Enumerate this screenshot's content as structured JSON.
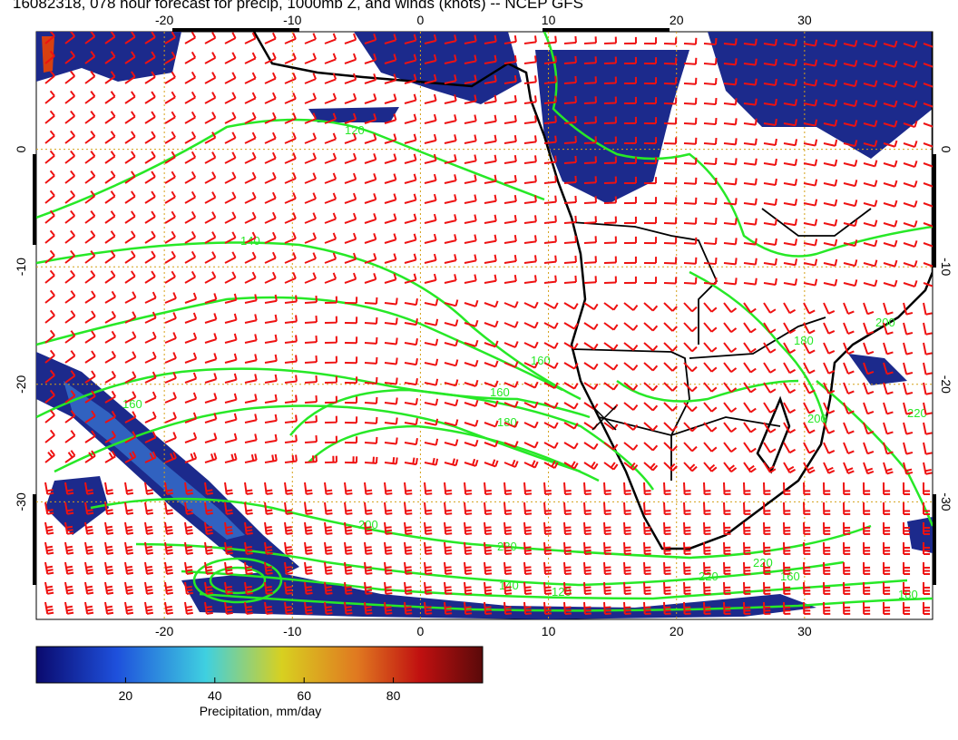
{
  "title": "16082318, 078 hour forecast for precip, 1000mb Z, and winds (knots) -- NCEP GFS",
  "map": {
    "lon_ticks": [
      "-20",
      "-10",
      "0",
      "10",
      "20",
      "30"
    ],
    "lat_ticks": [
      "0",
      "-10",
      "-20",
      "-30"
    ],
    "lon_range": [
      -30,
      40
    ],
    "lat_range": [
      -40,
      10
    ],
    "grid": true,
    "contour_labels": [
      "120",
      "140",
      "160",
      "160",
      "180",
      "200",
      "220",
      "120",
      "160",
      "180",
      "200",
      "220",
      "160",
      "180",
      "220",
      "200",
      "140",
      "220"
    ],
    "colors": {
      "precip_dark": "#1c2a8c",
      "precip_mid": "#3a7bd5",
      "contour": "#27e827",
      "wind_barb": "#ee1111",
      "grid": "#d4a017",
      "coast": "#000000"
    },
    "station_marker": "x-icon"
  },
  "colorbar": {
    "ticks": [
      "20",
      "40",
      "60",
      "80"
    ],
    "title": "Precipitation, mm/day",
    "range": [
      0,
      100
    ],
    "colors": [
      "#0a0a6e",
      "#1e50dc",
      "#3fd0e0",
      "#d8d020",
      "#e07820",
      "#c01010",
      "#5a0a0a"
    ]
  }
}
